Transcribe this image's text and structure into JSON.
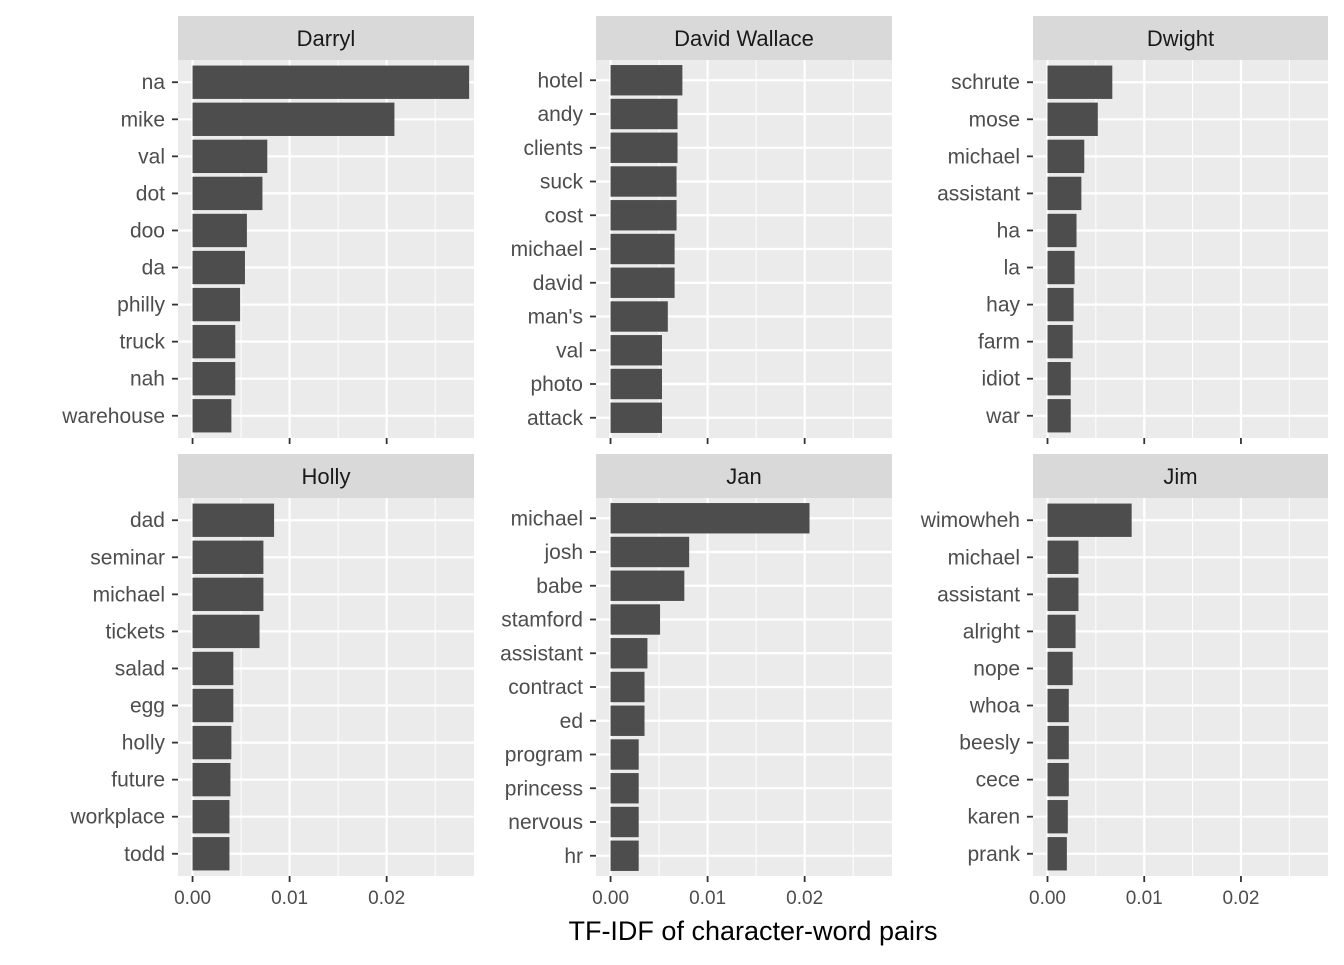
{
  "chart_data": {
    "type": "bar",
    "orientation": "horizontal",
    "layout": "facet-grid 2x3",
    "xlabel": "TF-IDF of character-word pairs",
    "xlim": [
      -0.0015,
      0.029
    ],
    "xticks": [
      0.0,
      0.01,
      0.02
    ],
    "xtick_labels": [
      "0.00",
      "0.01",
      "0.02"
    ],
    "grid": true,
    "bar_color": "#4d4d4d",
    "panel_bg": "#ebebeb",
    "strip_bg": "#d9d9d9",
    "gridline_color": "#ffffff",
    "panels": [
      {
        "title": "Darryl",
        "categories": [
          "na",
          "mike",
          "val",
          "dot",
          "doo",
          "da",
          "philly",
          "truck",
          "nah",
          "warehouse"
        ],
        "values": [
          0.0285,
          0.0208,
          0.0077,
          0.0072,
          0.0056,
          0.0054,
          0.0049,
          0.0044,
          0.0044,
          0.004
        ]
      },
      {
        "title": "David Wallace",
        "categories": [
          "hotel",
          "andy",
          "clients",
          "suck",
          "cost",
          "michael",
          "david",
          "man's",
          "val",
          "photo",
          "attack"
        ],
        "values": [
          0.0074,
          0.0069,
          0.0069,
          0.0068,
          0.0068,
          0.0066,
          0.0066,
          0.0059,
          0.0053,
          0.0053,
          0.0053
        ]
      },
      {
        "title": "Dwight",
        "categories": [
          "schrute",
          "mose",
          "michael",
          "assistant",
          "ha",
          "la",
          "hay",
          "farm",
          "idiot",
          "war"
        ],
        "values": [
          0.0067,
          0.0052,
          0.0038,
          0.0035,
          0.003,
          0.0028,
          0.0027,
          0.0026,
          0.0024,
          0.0024
        ]
      },
      {
        "title": "Holly",
        "categories": [
          "dad",
          "seminar",
          "michael",
          "tickets",
          "salad",
          "egg",
          "holly",
          "future",
          "workplace",
          "todd"
        ],
        "values": [
          0.0084,
          0.0073,
          0.0073,
          0.0069,
          0.0042,
          0.0042,
          0.004,
          0.0039,
          0.0038,
          0.0038
        ]
      },
      {
        "title": "Jan",
        "categories": [
          "michael",
          "josh",
          "babe",
          "stamford",
          "assistant",
          "contract",
          "ed",
          "program",
          "princess",
          "nervous",
          "hr"
        ],
        "values": [
          0.0205,
          0.0081,
          0.0076,
          0.0051,
          0.0038,
          0.0035,
          0.0035,
          0.0029,
          0.0029,
          0.0029,
          0.0029
        ]
      },
      {
        "title": "Jim",
        "categories": [
          "wimowheh",
          "michael",
          "assistant",
          "alright",
          "nope",
          "whoa",
          "beesly",
          "cece",
          "karen",
          "prank"
        ],
        "values": [
          0.0087,
          0.0032,
          0.0032,
          0.0029,
          0.0026,
          0.0022,
          0.0022,
          0.0022,
          0.0021,
          0.002
        ]
      }
    ]
  }
}
